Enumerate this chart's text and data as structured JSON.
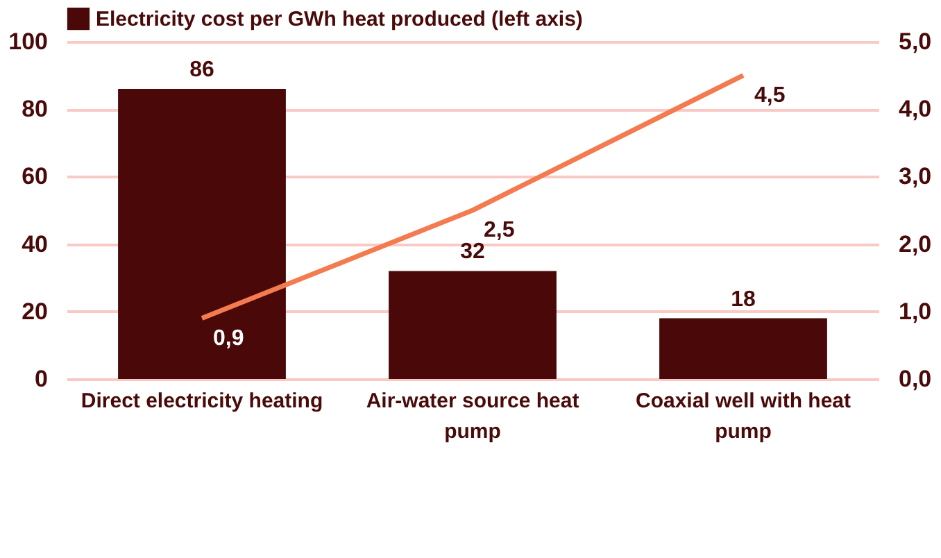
{
  "chart_data": {
    "type": "bar",
    "categories": [
      "Direct electricity heating",
      "Air-water source heat pump",
      "Coaxial well with heat pump"
    ],
    "series": [
      {
        "name": "Electricity cost per GWh heat produced (left axis)",
        "color": "#4a0808",
        "values": [
          86,
          32,
          18
        ]
      },
      {
        "type": "line",
        "axis": "y2",
        "color": "#f47a50",
        "values": [
          0.9,
          2.5,
          4.5
        ],
        "value_labels": [
          "0,9",
          "2,5",
          "4,5"
        ]
      }
    ],
    "data_labels": true,
    "ylim": [
      0,
      100
    ],
    "yticks": [
      0,
      20,
      40,
      60,
      80,
      100
    ],
    "y2lim": [
      0,
      5
    ],
    "y2ticks": [
      {
        "value": 0,
        "label": "0,0"
      },
      {
        "value": 1,
        "label": "1,0"
      },
      {
        "value": 2,
        "label": "2,0"
      },
      {
        "value": 3,
        "label": "3,0"
      },
      {
        "value": 4,
        "label": "4,0"
      },
      {
        "value": 5,
        "label": "5,0"
      }
    ],
    "grid": "y",
    "legend": "top",
    "marker": "none",
    "line_style": "solid"
  }
}
